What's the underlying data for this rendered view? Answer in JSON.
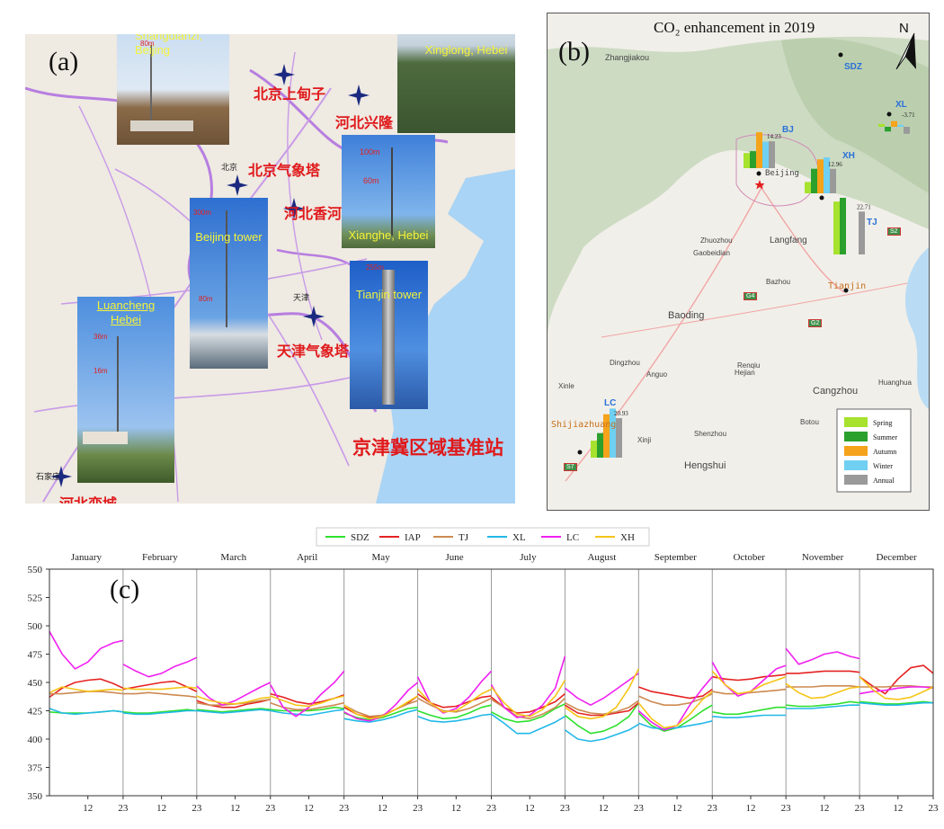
{
  "panel_a": {
    "letter": "(a)",
    "region_title": "京津冀区域基准站",
    "station_labels": [
      "北京上甸子",
      "河北兴隆",
      "北京气象塔",
      "河北香河",
      "天津气象塔",
      "河北栾城"
    ],
    "map_small_labels": [
      "北京",
      "天津",
      "石家庄"
    ],
    "photos": [
      {
        "caption": "Shangdianzi,\nBeijing",
        "heights": [
          "80m"
        ]
      },
      {
        "caption": "Xinglong, Hebei",
        "heights": []
      },
      {
        "caption": "Xianghe, Hebei",
        "heights": [
          "100m",
          "60m"
        ]
      },
      {
        "caption": "Beijing tower",
        "heights": [
          "300m",
          "80m"
        ]
      },
      {
        "caption": "Tianjin tower",
        "heights": [
          "255m"
        ]
      },
      {
        "caption": "Luancheng\nHebei",
        "heights": [
          "36m",
          "16m"
        ]
      }
    ]
  },
  "panel_b": {
    "letter": "(b)",
    "title": "CO₂ enhancement in 2019",
    "north": "N",
    "city_labels": [
      "Zhangjiakou",
      "Beijing",
      "Langfang",
      "Zhuozhou",
      "Gaobeidian",
      "Bazhou",
      "Tianjin",
      "Baoding",
      "Renqiu",
      "Dingzhou",
      "Anguo",
      "Hejian",
      "Cangzhou",
      "Huanghua",
      "Xinle",
      "Shijiazhuang",
      "Xinji",
      "Shenzhou",
      "Botou",
      "Hengshui"
    ],
    "road_labels": [
      "S2",
      "G4",
      "G2",
      "S7"
    ],
    "station_codes": [
      "SDZ",
      "XL",
      "BJ",
      "XH",
      "TJ",
      "LC"
    ],
    "legend": [
      {
        "name": "Spring",
        "color": "#a6e22e"
      },
      {
        "name": "Summer",
        "color": "#2ca02c"
      },
      {
        "name": "Autumn",
        "color": "#f5a31a"
      },
      {
        "name": "Winter",
        "color": "#6fd0f2"
      },
      {
        "name": "Annual",
        "color": "#9a9a9a"
      }
    ]
  },
  "panel_c": {
    "letter": "(c)",
    "legend": [
      {
        "name": "SDZ",
        "color": "#2ee02e"
      },
      {
        "name": "IAP",
        "color": "#e52222"
      },
      {
        "name": "TJ",
        "color": "#cd8a52"
      },
      {
        "name": "XL",
        "color": "#22b8e8"
      },
      {
        "name": "LC",
        "color": "#f020f0"
      },
      {
        "name": "XH",
        "color": "#f5c518"
      }
    ],
    "months": [
      "January",
      "February",
      "March",
      "April",
      "May",
      "June",
      "July",
      "August",
      "September",
      "October",
      "November",
      "December"
    ],
    "hour_ticks": [
      "12",
      "23"
    ]
  },
  "chart_data": [
    {
      "type": "bar",
      "title": "CO₂ enhancement in 2019",
      "categories": [
        "Spring",
        "Summer",
        "Autumn",
        "Winter",
        "Annual"
      ],
      "series": [
        {
          "name": "BJ",
          "values": [
            8,
            9,
            19,
            14,
            14.23
          ],
          "annual_label": "14.23"
        },
        {
          "name": "XH",
          "values": [
            6,
            13,
            18,
            19,
            12.96
          ],
          "annual_label": "12.96"
        },
        {
          "name": "XL",
          "values": [
            1.5,
            -2.5,
            3,
            1,
            -3.71
          ],
          "annual_label": "-3.71"
        },
        {
          "name": "TJ",
          "values": [
            28,
            30,
            0,
            0,
            22.71
          ],
          "annual_label": "22.71"
        },
        {
          "name": "LC",
          "values": [
            9,
            13,
            23,
            26,
            20.93
          ],
          "annual_label": "20.93"
        },
        {
          "name": "SDZ",
          "values": [
            0,
            0,
            0,
            0,
            0
          ],
          "annual_label": ""
        }
      ]
    },
    {
      "type": "line",
      "ylim": [
        350,
        550
      ],
      "yticks": [
        350,
        375,
        400,
        425,
        450,
        475,
        500,
        525,
        550
      ],
      "x_hours": [
        0,
        4,
        8,
        12,
        16,
        20,
        23
      ],
      "series": [
        {
          "name": "SDZ",
          "months": [
            [
              424,
              423,
              423,
              423,
              424,
              425,
              424
            ],
            [
              424,
              423,
              423,
              424,
              425,
              426,
              425
            ],
            [
              426,
              425,
              424,
              425,
              426,
              427,
              426
            ],
            [
              426,
              425,
              425,
              425,
              426,
              428,
              427
            ],
            [
              423,
              419,
              417,
              419,
              423,
              427,
              428
            ],
            [
              425,
              421,
              418,
              419,
              423,
              428,
              430
            ],
            [
              424,
              418,
              415,
              416,
              420,
              427,
              431
            ],
            [
              421,
              412,
              405,
              407,
              412,
              420,
              432
            ],
            [
              423,
              412,
              407,
              410,
              417,
              425,
              430
            ],
            [
              424,
              422,
              422,
              424,
              426,
              428,
              428
            ],
            [
              430,
              429,
              429,
              430,
              431,
              433,
              432
            ],
            [
              433,
              432,
              431,
              431,
              432,
              433,
              432
            ]
          ]
        },
        {
          "name": "IAP",
          "months": [
            [
              437,
              445,
              450,
              452,
              453,
              449,
              445
            ],
            [
              444,
              446,
              448,
              450,
              451,
              446,
              442
            ],
            [
              434,
              430,
              428,
              428,
              431,
              433,
              435
            ],
            [
              440,
              437,
              433,
              431,
              433,
              436,
              439
            ],
            [
              428,
              422,
              419,
              421,
              426,
              432,
              438
            ],
            [
              440,
              432,
              428,
              429,
              433,
              437,
              438
            ],
            [
              437,
              428,
              423,
              424,
              428,
              433,
              440
            ],
            [
              430,
              423,
              421,
              421,
              423,
              425,
              432
            ],
            [
              446,
              442,
              440,
              438,
              436,
              438,
              444
            ],
            [
              455,
              453,
              452,
              453,
              455,
              456,
              457
            ],
            [
              458,
              458,
              459,
              460,
              460,
              460,
              459
            ],
            [
              455,
              447,
              440,
              453,
              463,
              465,
              458
            ]
          ]
        },
        {
          "name": "TJ",
          "months": [
            [
              440,
              440,
              441,
              442,
              442,
              441,
              440
            ],
            [
              440,
              440,
              441,
              440,
              439,
              438,
              437
            ],
            [
              432,
              430,
              430,
              431,
              432,
              434,
              435
            ],
            [
              432,
              428,
              426,
              426,
              428,
              430,
              432
            ],
            [
              430,
              424,
              420,
              421,
              426,
              431,
              434
            ],
            [
              436,
              430,
              425,
              424,
              427,
              432,
              436
            ],
            [
              435,
              428,
              420,
              418,
              422,
              428,
              436
            ],
            [
              432,
              426,
              423,
              422,
              424,
              428,
              434
            ],
            [
              438,
              433,
              430,
              430,
              432,
              436,
              440
            ],
            [
              442,
              440,
              440,
              441,
              442,
              443,
              444
            ],
            [
              446,
              446,
              446,
              447,
              447,
              447,
              446
            ],
            [
              446,
              446,
              446,
              447,
              447,
              446,
              446
            ]
          ]
        },
        {
          "name": "XL",
          "months": [
            [
              427,
              423,
              422,
              423,
              424,
              425,
              424
            ],
            [
              423,
              422,
              422,
              423,
              424,
              425,
              425
            ],
            [
              425,
              424,
              423,
              424,
              425,
              426,
              425
            ],
            [
              425,
              423,
              422,
              421,
              423,
              425,
              426
            ],
            [
              418,
              416,
              415,
              417,
              420,
              424,
              426
            ],
            [
              420,
              416,
              415,
              416,
              418,
              421,
              422
            ],
            [
              422,
              414,
              405,
              405,
              410,
              415,
              420
            ],
            [
              408,
              400,
              398,
              400,
              404,
              408,
              413
            ],
            [
              414,
              410,
              409,
              410,
              412,
              414,
              416
            ],
            [
              420,
              419,
              419,
              420,
              421,
              421,
              421
            ],
            [
              427,
              427,
              427,
              428,
              429,
              430,
              430
            ],
            [
              432,
              431,
              430,
              430,
              431,
              432,
              432
            ]
          ]
        },
        {
          "name": "LC",
          "months": [
            [
              495,
              475,
              462,
              468,
              480,
              485,
              487
            ],
            [
              466,
              460,
              455,
              458,
              464,
              468,
              472
            ],
            [
              447,
              436,
              430,
              434,
              440,
              446,
              450
            ],
            [
              448,
              428,
              420,
              428,
              440,
              450,
              460
            ],
            [
              424,
              418,
              416,
              420,
              430,
              443,
              450
            ],
            [
              455,
              432,
              423,
              427,
              437,
              451,
              460
            ],
            [
              448,
              428,
              419,
              421,
              430,
              445,
              473
            ],
            [
              445,
              436,
              430,
              436,
              444,
              452,
              458
            ],
            [
              425,
              415,
              408,
              412,
              430,
              445,
              455
            ],
            [
              468,
              448,
              438,
              442,
              452,
              462,
              465
            ],
            [
              480,
              466,
              470,
              475,
              477,
              473,
              471
            ],
            [
              440,
              442,
              443,
              445,
              446,
              446,
              445
            ]
          ]
        },
        {
          "name": "XH",
          "months": [
            [
              441,
              446,
              444,
              442,
              443,
              444,
              443
            ],
            [
              445,
              444,
              444,
              444,
              445,
              446,
              445
            ],
            [
              438,
              434,
              432,
              431,
              433,
              436,
              437
            ],
            [
              438,
              434,
              430,
              429,
              432,
              436,
              438
            ],
            [
              430,
              422,
              418,
              420,
              426,
              433,
              438
            ],
            [
              444,
              432,
              424,
              425,
              432,
              440,
              444
            ],
            [
              446,
              432,
              422,
              420,
              426,
              438,
              452
            ],
            [
              428,
              420,
              418,
              420,
              428,
              445,
              462
            ],
            [
              432,
              418,
              410,
              412,
              422,
              435,
              442
            ],
            [
              460,
              448,
              440,
              442,
              448,
              452,
              455
            ],
            [
              449,
              441,
              436,
              437,
              441,
              445,
              446
            ],
            [
              455,
              444,
              436,
              435,
              437,
              442,
              446
            ]
          ]
        }
      ]
    }
  ]
}
